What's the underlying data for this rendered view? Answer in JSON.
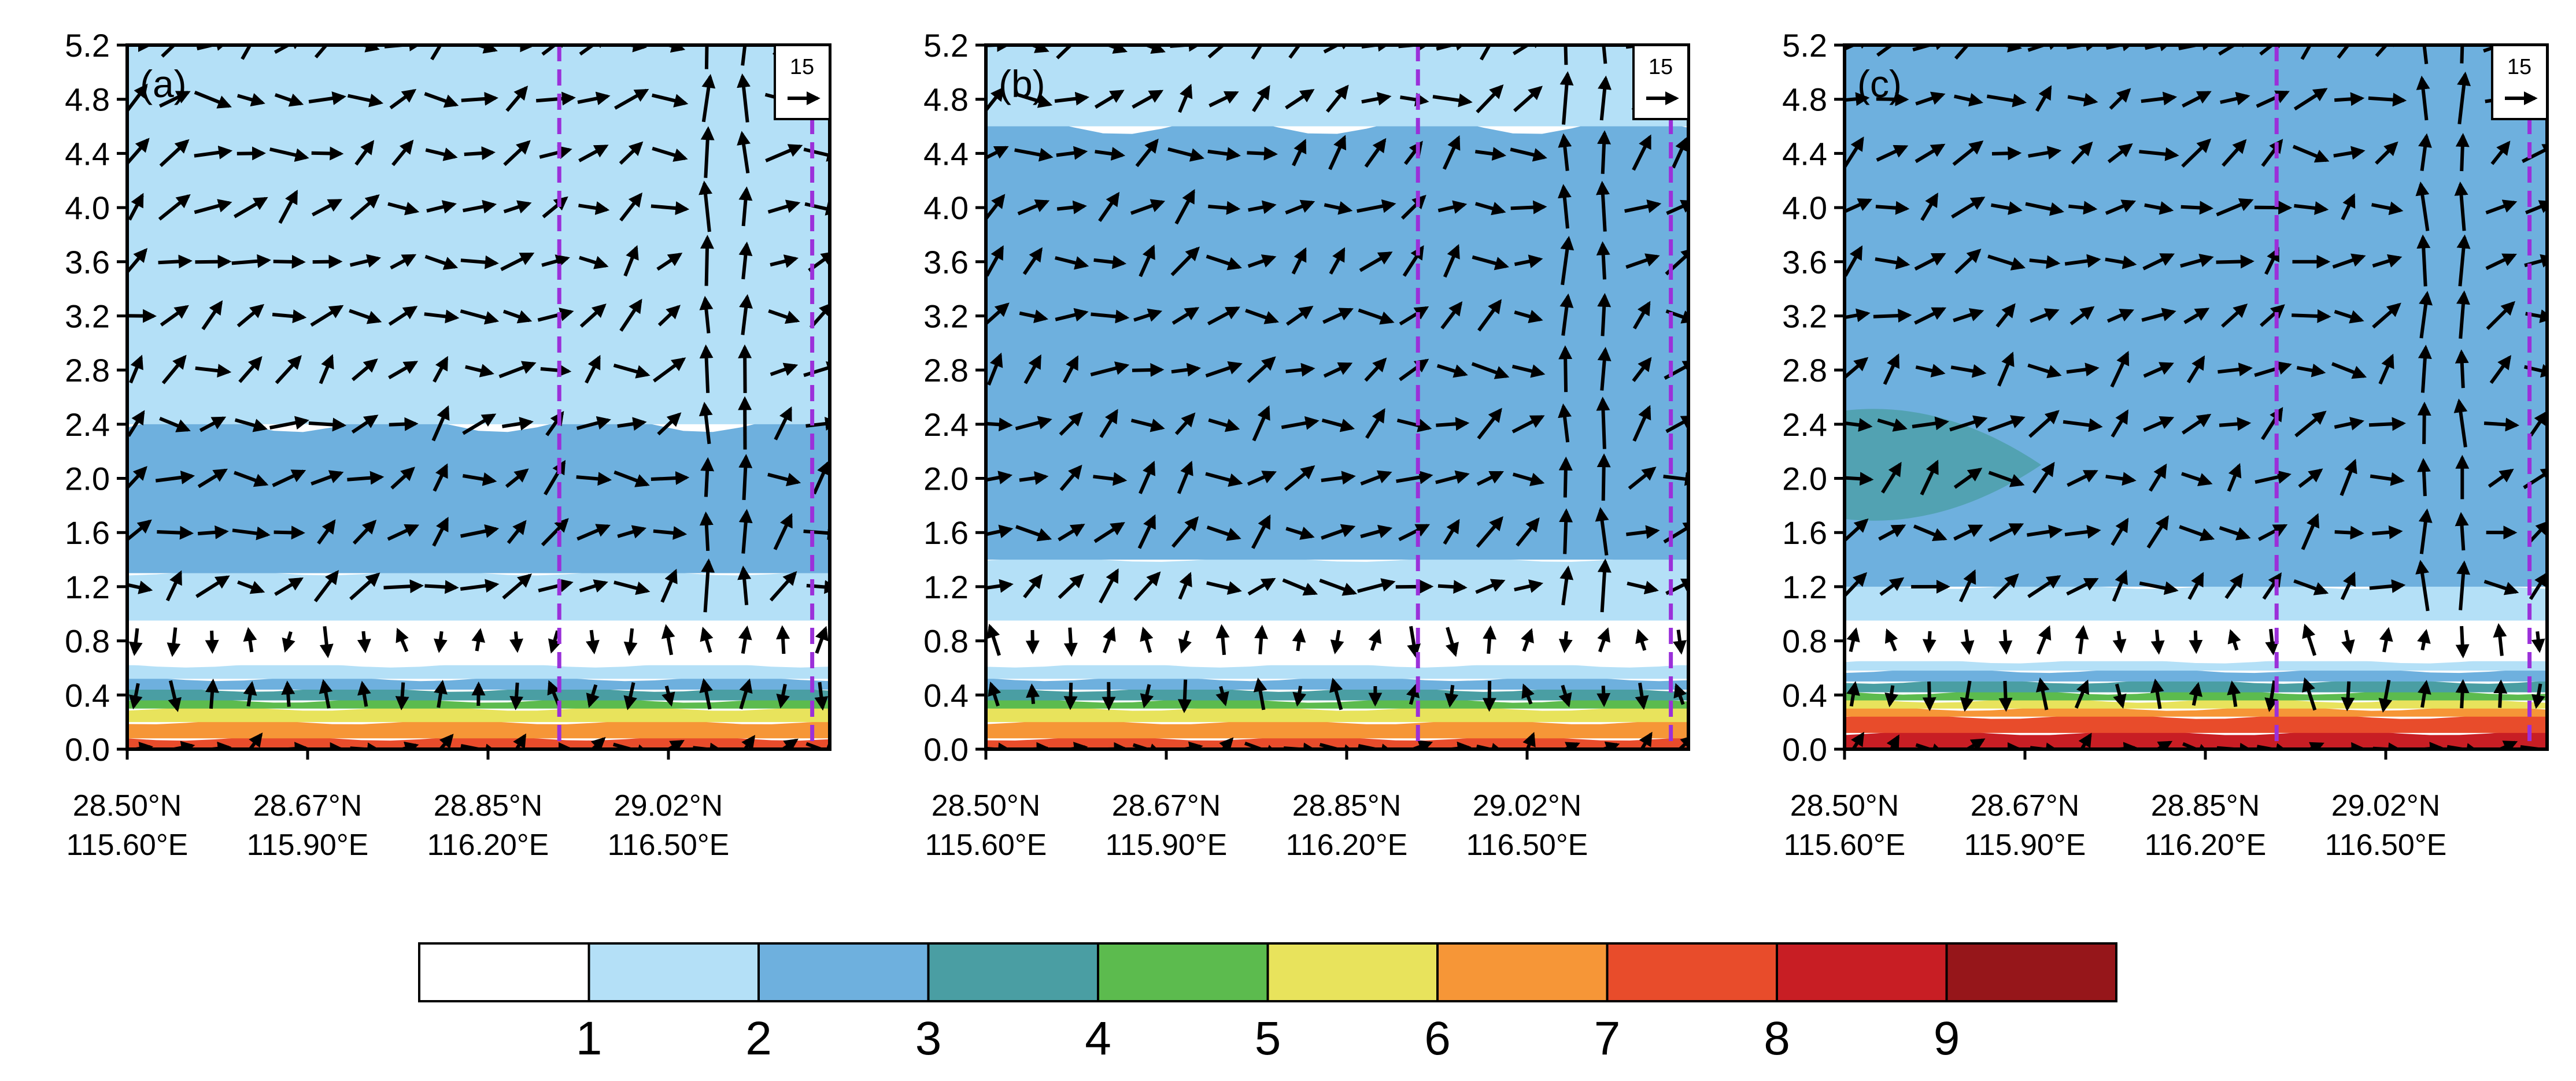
{
  "chart_data": {
    "type": "heatmap",
    "y_axis": {
      "ticks": [
        "0.0",
        "0.4",
        "0.8",
        "1.2",
        "1.6",
        "2.0",
        "2.4",
        "2.8",
        "3.2",
        "3.6",
        "4.0",
        "4.4",
        "4.8",
        "5.2"
      ],
      "ylim": [
        0,
        5.2
      ]
    },
    "x_axis": {
      "ticks": [
        {
          "line1": "28.50°N",
          "line2": "115.60°E"
        },
        {
          "line1": "28.67°N",
          "line2": "115.90°E"
        },
        {
          "line1": "28.85°N",
          "line2": "116.20°E"
        },
        {
          "line1": "29.02°N",
          "line2": "116.50°E"
        }
      ]
    },
    "colorbar": {
      "labels": [
        "1",
        "2",
        "3",
        "4",
        "5",
        "6",
        "7",
        "8",
        "9"
      ],
      "colors": [
        "#ffffff",
        "#b4e0f7",
        "#6eb0de",
        "#4a9ea3",
        "#5cbb4e",
        "#e8e35c",
        "#f69637",
        "#e84c2b",
        "#c81e24",
        "#96161a"
      ]
    },
    "reference_vector": {
      "label": "15"
    },
    "panels": [
      {
        "label": "(a)",
        "dashed_lines_fraction": [
          0.615,
          0.975
        ],
        "bands": [
          {
            "from": 0.0,
            "to": 0.08,
            "level": 7
          },
          {
            "from": 0.08,
            "to": 0.2,
            "level": 6
          },
          {
            "from": 0.2,
            "to": 0.3,
            "level": 5
          },
          {
            "from": 0.3,
            "to": 0.36,
            "level": 4
          },
          {
            "from": 0.36,
            "to": 0.44,
            "level": 3
          },
          {
            "from": 0.44,
            "to": 0.52,
            "level": 2
          },
          {
            "from": 0.52,
            "to": 0.62,
            "level": 1
          },
          {
            "from": 0.62,
            "to": 0.95,
            "level": 0
          },
          {
            "from": 0.95,
            "to": 1.3,
            "level": 1
          },
          {
            "from": 1.3,
            "to": 2.4,
            "level": 2
          },
          {
            "from": 2.4,
            "to": 5.2,
            "level": 1
          }
        ]
      },
      {
        "label": "(b)",
        "dashed_lines_fraction": [
          0.615,
          0.975
        ],
        "bands": [
          {
            "from": 0.0,
            "to": 0.08,
            "level": 7
          },
          {
            "from": 0.08,
            "to": 0.2,
            "level": 6
          },
          {
            "from": 0.2,
            "to": 0.3,
            "level": 5
          },
          {
            "from": 0.3,
            "to": 0.36,
            "level": 4
          },
          {
            "from": 0.36,
            "to": 0.44,
            "level": 3
          },
          {
            "from": 0.44,
            "to": 0.52,
            "level": 2
          },
          {
            "from": 0.52,
            "to": 0.62,
            "level": 1
          },
          {
            "from": 0.62,
            "to": 0.95,
            "level": 0
          },
          {
            "from": 0.95,
            "to": 1.4,
            "level": 1
          },
          {
            "from": 1.4,
            "to": 4.6,
            "level": 2
          },
          {
            "from": 4.6,
            "to": 5.2,
            "level": 1
          }
        ]
      },
      {
        "label": "(c)",
        "dashed_lines_fraction": [
          0.615,
          0.975
        ],
        "bands": [
          {
            "from": 0.0,
            "to": 0.12,
            "level": 8
          },
          {
            "from": 0.12,
            "to": 0.24,
            "level": 7
          },
          {
            "from": 0.24,
            "to": 0.3,
            "level": 6
          },
          {
            "from": 0.3,
            "to": 0.36,
            "level": 5
          },
          {
            "from": 0.36,
            "to": 0.42,
            "level": 4
          },
          {
            "from": 0.42,
            "to": 0.5,
            "level": 3
          },
          {
            "from": 0.5,
            "to": 0.58,
            "level": 2
          },
          {
            "from": 0.58,
            "to": 0.65,
            "level": 1
          },
          {
            "from": 0.65,
            "to": 0.95,
            "level": 0
          },
          {
            "from": 0.95,
            "to": 1.2,
            "level": 1
          },
          {
            "from": 1.2,
            "to": 5.2,
            "level": 2
          }
        ],
        "patches": [
          {
            "x_from": 0.0,
            "x_to": 0.28,
            "y_from": 1.7,
            "y_to": 2.5,
            "level": 3
          }
        ]
      }
    ]
  }
}
